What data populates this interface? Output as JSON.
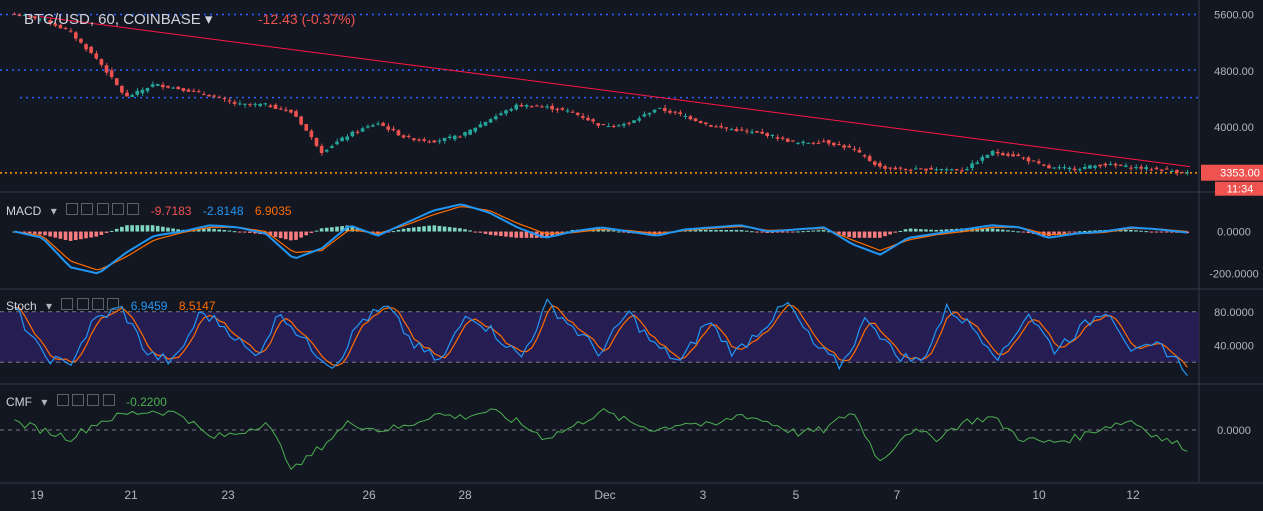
{
  "header": {
    "symbol": "BTC/USD, 60, COINBASE",
    "change": "-12.43 (-0.37%)"
  },
  "price_badge": {
    "value": "3353.00",
    "countdown": "11:34"
  },
  "colors": {
    "bg": "#131722",
    "up": "#26a69a",
    "down": "#ef5350",
    "grid": "#1e222d",
    "macd": "#2196f3",
    "signal": "#ff6d00",
    "stoch_k": "#2196f3",
    "stoch_d": "#ff6d00",
    "cmf": "#4caf50",
    "hline": "#2962ff",
    "trend": "#ff1744",
    "support": "#ff9800"
  },
  "indicators": {
    "macd": {
      "name": "MACD",
      "v1": "-9.7183",
      "v2": "-2.8148",
      "v3": "6.9035"
    },
    "stoch": {
      "name": "Stoch",
      "v1": "6.9459",
      "v2": "8.5147"
    },
    "cmf": {
      "name": "CMF",
      "v1": "-0.2200"
    }
  },
  "chart_data": [
    {
      "type": "candlestick",
      "title": "BTC/USD, 60, COINBASE",
      "y_ticks": [
        "5600.00",
        "4800.00",
        "4000.00"
      ],
      "ylim": [
        3150,
        5750
      ],
      "x_ticks": [
        "19",
        "21",
        "23",
        "26",
        "28",
        "Dec",
        "3",
        "5",
        "7",
        "10",
        "12"
      ],
      "horizontal_levels": [
        5600,
        4810,
        4420
      ],
      "support_level": 3350,
      "trendline": {
        "from": [
          0,
          5570
        ],
        "to": [
          1,
          3440
        ]
      },
      "close_anchors": [
        5600,
        5540,
        5350,
        4950,
        4420,
        4610,
        4540,
        4450,
        4320,
        4320,
        4200,
        3650,
        3900,
        4060,
        3850,
        3800,
        3880,
        4110,
        4310,
        4290,
        4210,
        4020,
        4050,
        4270,
        4160,
        4010,
        3950,
        3890,
        3770,
        3800,
        3690,
        3430,
        3390,
        3410,
        3390,
        3650,
        3580,
        3420,
        3410,
        3470,
        3430,
        3400,
        3353
      ],
      "last": 3353
    },
    {
      "type": "line",
      "name": "MACD",
      "y_ticks": [
        "0.0000",
        "-200.0000"
      ],
      "ylim": [
        -240,
        150
      ],
      "macd_anchors": [
        0,
        -30,
        -170,
        -200,
        -100,
        -20,
        0,
        30,
        20,
        -10,
        -130,
        -80,
        30,
        -20,
        40,
        100,
        130,
        90,
        20,
        -30,
        0,
        20,
        0,
        -20,
        10,
        20,
        30,
        0,
        10,
        20,
        -60,
        -110,
        -30,
        -10,
        10,
        30,
        20,
        -30,
        -10,
        0,
        20,
        10,
        -5
      ],
      "signal_anchors": [
        0,
        -20,
        -140,
        -185,
        -120,
        -40,
        -5,
        20,
        20,
        0,
        -100,
        -90,
        10,
        -10,
        30,
        80,
        120,
        100,
        40,
        -10,
        -5,
        10,
        5,
        -10,
        5,
        15,
        25,
        5,
        10,
        15,
        -40,
        -90,
        -40,
        -15,
        0,
        20,
        20,
        -15,
        -10,
        -5,
        15,
        12,
        0
      ],
      "last": [
        -9.7183,
        -2.8148,
        6.9035
      ]
    },
    {
      "type": "line",
      "name": "Stoch",
      "y_ticks": [
        "80.0000",
        "40.0000"
      ],
      "ylim": [
        0,
        100
      ],
      "bands": [
        80,
        20
      ],
      "k_anchors": [
        85,
        30,
        15,
        70,
        85,
        30,
        20,
        80,
        60,
        25,
        80,
        40,
        15,
        70,
        85,
        40,
        20,
        80,
        55,
        25,
        90,
        60,
        30,
        80,
        40,
        20,
        70,
        30,
        60,
        90,
        40,
        15,
        75,
        30,
        20,
        85,
        60,
        25,
        80,
        35,
        60,
        85,
        30,
        40,
        10
      ],
      "last": [
        6.9459,
        8.5147
      ]
    },
    {
      "type": "line",
      "name": "CMF",
      "y_ticks": [
        "0.0000"
      ],
      "ylim": [
        -0.3,
        0.25
      ],
      "cmf_anchors": [
        0.05,
        0.0,
        -0.05,
        0.05,
        0.1,
        0.12,
        0.1,
        -0.05,
        -0.02,
        0.05,
        -0.25,
        -0.1,
        0.05,
        0.0,
        0.02,
        0.1,
        0.08,
        0.12,
        0.05,
        -0.05,
        0.02,
        0.12,
        0.05,
        0.0,
        0.05,
        0.02,
        0.1,
        0.05,
        -0.02,
        0.0,
        0.12,
        -0.2,
        0.0,
        -0.05,
        0.05,
        0.08,
        -0.05,
        -0.08,
        -0.05,
        0.02,
        0.06,
        -0.05,
        -0.11
      ],
      "last": -0.22
    }
  ]
}
